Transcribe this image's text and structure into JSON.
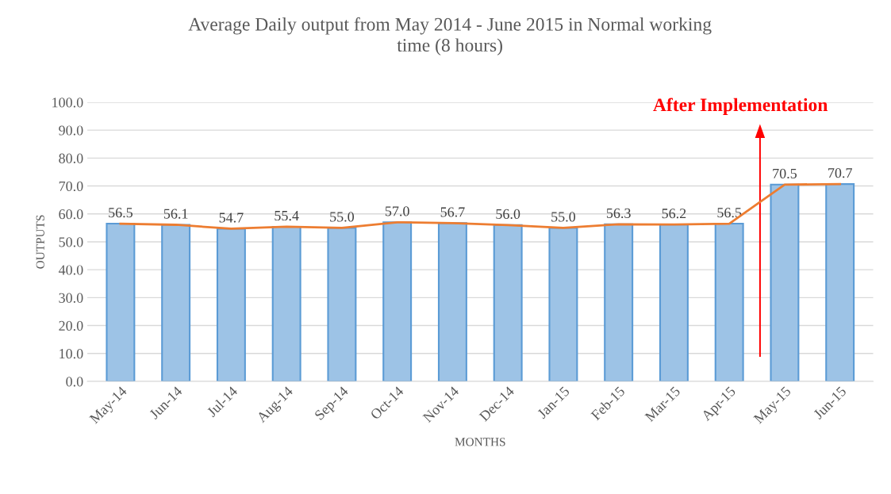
{
  "chart_data": {
    "type": "bar",
    "title": "Average Daily output from May 2014 - June 2015 in Normal working time (8 hours)",
    "xlabel": "MONTHS",
    "ylabel": "OUTPUTS",
    "categories": [
      "May-14",
      "Jun-14",
      "Jul-14",
      "Aug-14",
      "Sep-14",
      "Oct-14",
      "Nov-14",
      "Dec-14",
      "Jan-15",
      "Feb-15",
      "Mar-15",
      "Apr-15",
      "May-15",
      "Jun-15"
    ],
    "series": [
      {
        "color": "#9dc3e6",
        "values": [
          56.5,
          56.1,
          54.7,
          55.4,
          55.0,
          57.0,
          56.7,
          56.0,
          55.0,
          56.3,
          56.2,
          56.5,
          70.5,
          70.7
        ],
        "value_labels": [
          "56.5",
          "56.1",
          "54.7",
          "55.4",
          "55.0",
          "57.0",
          "56.7",
          "56.0",
          "55.0",
          "56.3",
          "56.2",
          "56.5",
          "70.5",
          "70.7"
        ]
      },
      {
        "type": "line",
        "color": "#ed7d31",
        "values": [
          56.5,
          56.1,
          54.7,
          55.4,
          55.0,
          57.0,
          56.7,
          56.0,
          55.0,
          56.3,
          56.2,
          56.5,
          70.5,
          70.7
        ]
      }
    ],
    "ylim": [
      0,
      100
    ],
    "yticks": [
      {
        "value": 0,
        "label": "0.0"
      },
      {
        "value": 10,
        "label": "10.0"
      },
      {
        "value": 20,
        "label": "20.0"
      },
      {
        "value": 30,
        "label": "30.0"
      },
      {
        "value": 40,
        "label": "40.0"
      },
      {
        "value": 50,
        "label": "50.0"
      },
      {
        "value": 60,
        "label": "60.0"
      },
      {
        "value": 70,
        "label": "70.0"
      },
      {
        "value": 80,
        "label": "80.0"
      },
      {
        "value": 90,
        "label": "90.0"
      },
      {
        "value": 100,
        "label": "100.0"
      }
    ],
    "grid": "y",
    "marker": "none",
    "line_style": "solid",
    "annotations": [
      "After Implementation"
    ]
  }
}
